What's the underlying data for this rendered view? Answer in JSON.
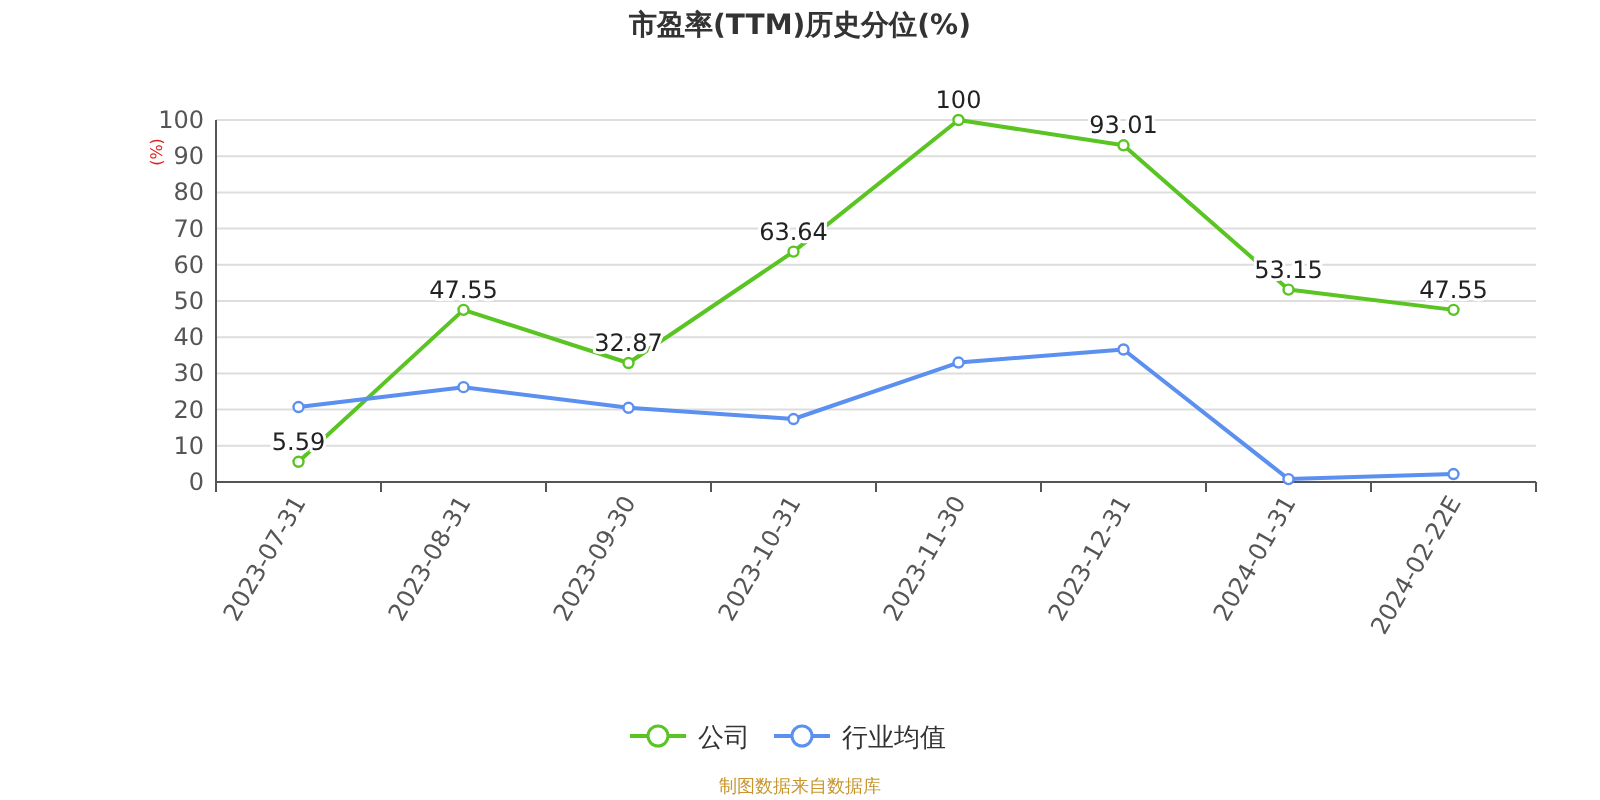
{
  "chart_data": {
    "type": "line",
    "title": "市盈率(TTM)历史分位(%)",
    "ylabel": "(%)",
    "categories": [
      "2023-07-31",
      "2023-08-31",
      "2023-09-30",
      "2023-10-31",
      "2023-11-30",
      "2023-12-31",
      "2024-01-31",
      "2024-02-22E"
    ],
    "series": [
      {
        "name": "公司",
        "color": "#5ac423",
        "values": [
          5.59,
          47.55,
          32.87,
          63.64,
          100,
          93.01,
          53.15,
          47.55
        ],
        "value_labels": [
          "5.59",
          "47.55",
          "32.87",
          "63.64",
          "100",
          "93.01",
          "53.15",
          "47.55"
        ]
      },
      {
        "name": "行业均值",
        "color": "#5b8ff0",
        "values": [
          20.7,
          26.2,
          20.5,
          17.4,
          33,
          36.6,
          0.8,
          2.2
        ]
      }
    ],
    "ylim": [
      0,
      100
    ],
    "yticks": [
      0,
      10,
      20,
      30,
      40,
      50,
      60,
      70,
      80,
      90,
      100
    ],
    "grid": "y",
    "legend": "bottom",
    "marker": "circle",
    "annotations": [
      "制图数据来自数据库"
    ]
  }
}
